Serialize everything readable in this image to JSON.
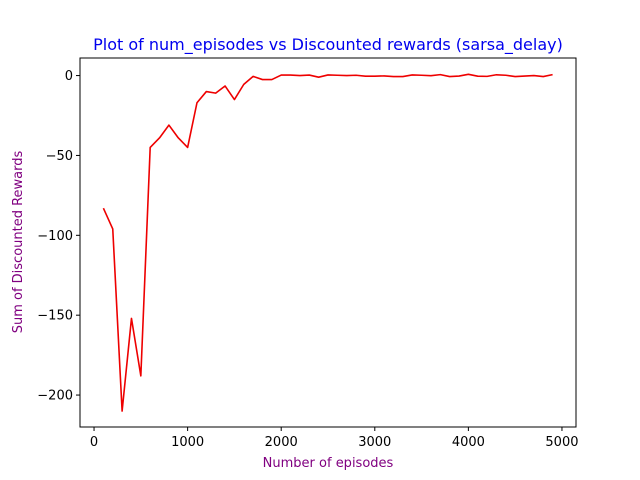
{
  "chart_data": {
    "type": "line",
    "title": "Plot of num_episodes vs Discounted rewards (sarsa_delay)",
    "xlabel": "Number of episodes",
    "ylabel": "Sum of Discounted Rewards",
    "xlim": [
      -150,
      5150
    ],
    "ylim": [
      -220,
      11
    ],
    "x_ticks": [
      0,
      1000,
      2000,
      3000,
      4000,
      5000
    ],
    "y_ticks": [
      0,
      -50,
      -100,
      -150,
      -200
    ],
    "x_tick_labels": [
      "0",
      "1000",
      "2000",
      "3000",
      "4000",
      "5000"
    ],
    "y_tick_labels": [
      "0",
      "−50",
      "−100",
      "−150",
      "−200"
    ],
    "grid": false,
    "legend": "none",
    "colors": {
      "line": "#ee0000",
      "title": "#0000ee",
      "axis_label": "#800080"
    },
    "series": [
      {
        "x": [
          100,
          200,
          300,
          400,
          500,
          600,
          700,
          800,
          900,
          1000,
          1100,
          1200,
          1300,
          1400,
          1500,
          1600,
          1700,
          1800,
          1900,
          2000,
          2100,
          2200,
          2300,
          2400,
          2500,
          2600,
          2700,
          2800,
          2900,
          3000,
          3100,
          3200,
          3300,
          3400,
          3500,
          3600,
          3700,
          3800,
          3900,
          4000,
          4100,
          4200,
          4300,
          4400,
          4500,
          4600,
          4700,
          4800,
          4900
        ],
        "values": [
          -83,
          -96,
          -210,
          -152,
          -188,
          -45,
          -39,
          -31,
          -39,
          -45,
          -17,
          -10,
          -11,
          -6.5,
          -15,
          -5.5,
          -0.5,
          -2.5,
          -2.5,
          0.3,
          0.3,
          0,
          0.3,
          -1,
          0.4,
          0.2,
          0,
          0.2,
          -0.4,
          -0.4,
          -0.2,
          -0.6,
          -0.6,
          0.4,
          0.2,
          -0.1,
          0.6,
          -0.6,
          -0.3,
          0.8,
          -0.4,
          -0.5,
          0.5,
          0.2,
          -0.6,
          -0.3,
          0,
          -0.6,
          0.6
        ]
      }
    ]
  }
}
